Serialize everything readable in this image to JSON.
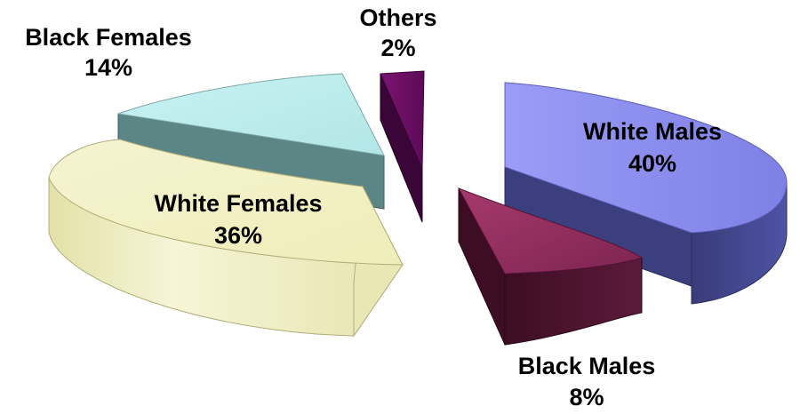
{
  "chart_data": {
    "type": "pie",
    "style": "3d-exploded",
    "title": "",
    "legend": "none",
    "categories": [
      "White Males",
      "Black Males",
      "White Females",
      "Black Females",
      "Others"
    ],
    "values": [
      40,
      8,
      36,
      14,
      2
    ],
    "value_labels": [
      "40%",
      "8%",
      "36%",
      "14%",
      "2%"
    ],
    "colors": {
      "White Males": "#8c8ef0",
      "Black Males": "#8e2d5c",
      "White Females": "#f3f1c4",
      "Black Females": "#bcecec",
      "Others": "#6e0d66"
    }
  }
}
